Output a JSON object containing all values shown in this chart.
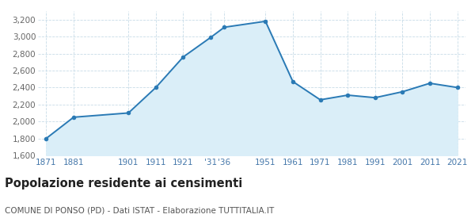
{
  "years": [
    1871,
    1881,
    1901,
    1911,
    1921,
    1931,
    1936,
    1951,
    1961,
    1971,
    1981,
    1991,
    2001,
    2011,
    2021
  ],
  "population": [
    1800,
    2050,
    2100,
    2400,
    2760,
    2990,
    3110,
    3180,
    2470,
    2255,
    2310,
    2280,
    2350,
    2450,
    2400
  ],
  "x_labels": [
    "1871",
    "1881",
    "1901",
    "1911",
    "1921",
    "'31",
    "'36",
    "1951",
    "1961",
    "1971",
    "1981",
    "1991",
    "2001",
    "2011",
    "2021"
  ],
  "ylim": [
    1600,
    3300
  ],
  "yticks": [
    1600,
    1800,
    2000,
    2200,
    2400,
    2600,
    2800,
    3000,
    3200
  ],
  "line_color": "#2a7ab5",
  "fill_color": "#daeef8",
  "marker_color": "#2a7ab5",
  "grid_color": "#c8dce8",
  "bg_color": "#ffffff",
  "label_color": "#4477aa",
  "title": "Popolazione residente ai censimenti",
  "subtitle": "COMUNE DI PONSO (PD) - Dati ISTAT - Elaborazione TUTTITALIA.IT",
  "title_fontsize": 10.5,
  "subtitle_fontsize": 7.5
}
